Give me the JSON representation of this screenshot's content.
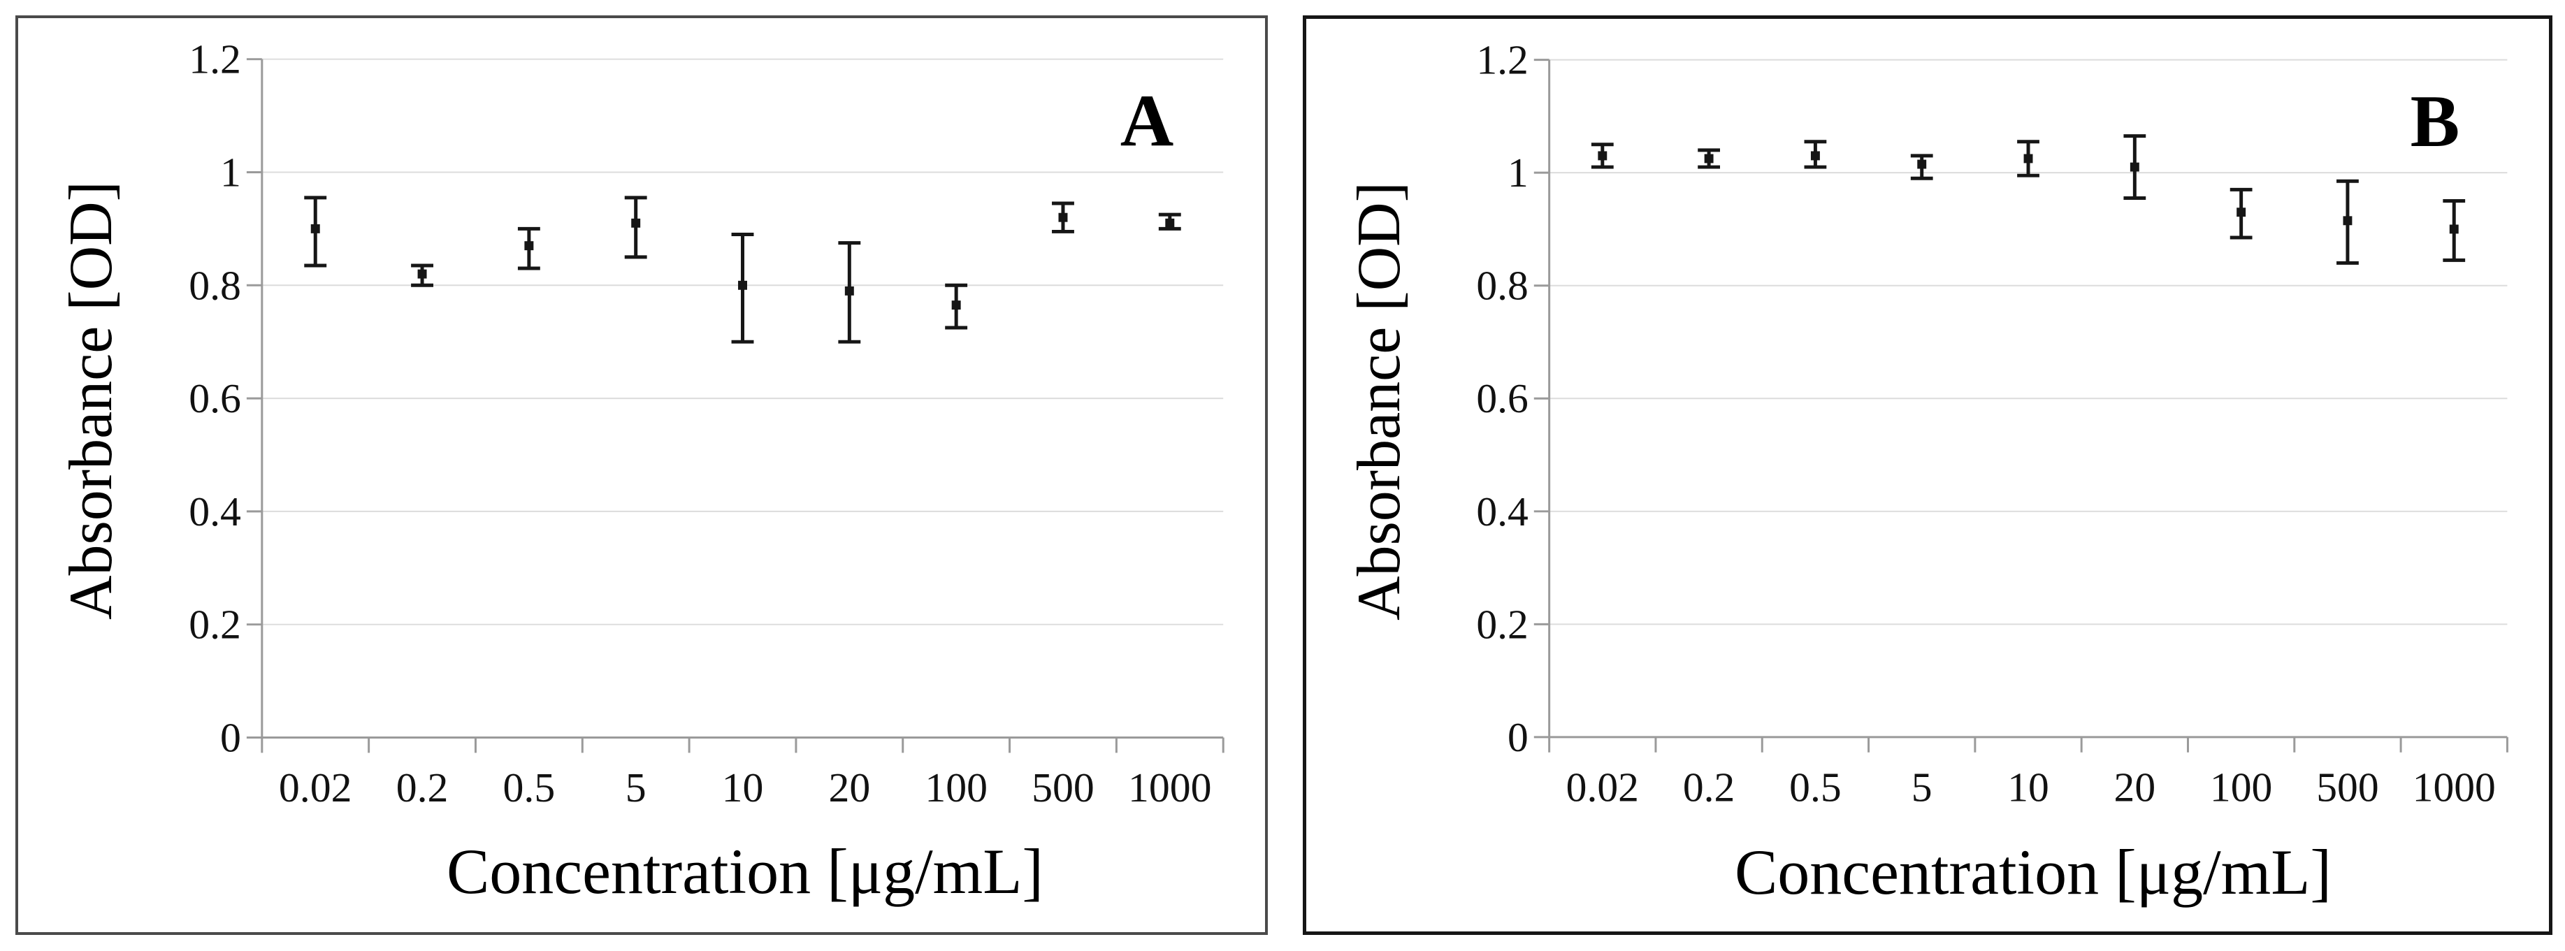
{
  "figure": {
    "background": "#ffffff",
    "panel_a_border": "#4a4a4a",
    "panel_b_border": "#161616"
  },
  "chart_data": [
    {
      "panel_label": "A",
      "type": "scatter",
      "title": "",
      "xlabel": "Concentration [μg/mL]",
      "ylabel": "Absorbance [OD]",
      "categories": [
        "0.02",
        "0.2",
        "0.5",
        "5",
        "10",
        "20",
        "100",
        "500",
        "1000"
      ],
      "values": [
        0.9,
        0.82,
        0.87,
        0.91,
        0.8,
        0.79,
        0.765,
        0.92,
        0.91
      ],
      "error_low": [
        0.835,
        0.8,
        0.83,
        0.85,
        0.7,
        0.7,
        0.725,
        0.895,
        0.9
      ],
      "error_high": [
        0.955,
        0.835,
        0.9,
        0.955,
        0.89,
        0.875,
        0.8,
        0.945,
        0.925
      ],
      "ylim": [
        0,
        1.2
      ],
      "yticks": [
        0,
        0.2,
        0.4,
        0.6,
        0.8,
        1,
        1.2
      ],
      "ytick_labels": [
        "0",
        "0.2",
        "0.4",
        "0.6",
        "0.8",
        "1",
        "1.2"
      ],
      "grid": true,
      "legend": "none",
      "colors": {
        "marker": "#161616",
        "error": "#161616",
        "grid": "#dcdcdc",
        "axis": "#9a9a9a",
        "text": "#111111"
      }
    },
    {
      "panel_label": "B",
      "type": "scatter",
      "title": "",
      "xlabel": "Concentration [μg/mL]",
      "ylabel": "Absorbance [OD]",
      "categories": [
        "0.02",
        "0.2",
        "0.5",
        "5",
        "10",
        "20",
        "100",
        "500",
        "1000"
      ],
      "values": [
        1.03,
        1.025,
        1.03,
        1.015,
        1.025,
        1.01,
        0.93,
        0.915,
        0.9
      ],
      "error_low": [
        1.01,
        1.01,
        1.01,
        0.99,
        0.995,
        0.955,
        0.885,
        0.84,
        0.845
      ],
      "error_high": [
        1.05,
        1.04,
        1.055,
        1.03,
        1.055,
        1.065,
        0.97,
        0.985,
        0.95
      ],
      "ylim": [
        0,
        1.2
      ],
      "yticks": [
        0,
        0.2,
        0.4,
        0.6,
        0.8,
        1,
        1.2
      ],
      "ytick_labels": [
        "0",
        "0.2",
        "0.4",
        "0.6",
        "0.8",
        "1",
        "1.2"
      ],
      "grid": true,
      "legend": "none",
      "colors": {
        "marker": "#161616",
        "error": "#161616",
        "grid": "#dcdcdc",
        "axis": "#9a9a9a",
        "text": "#111111"
      }
    }
  ]
}
